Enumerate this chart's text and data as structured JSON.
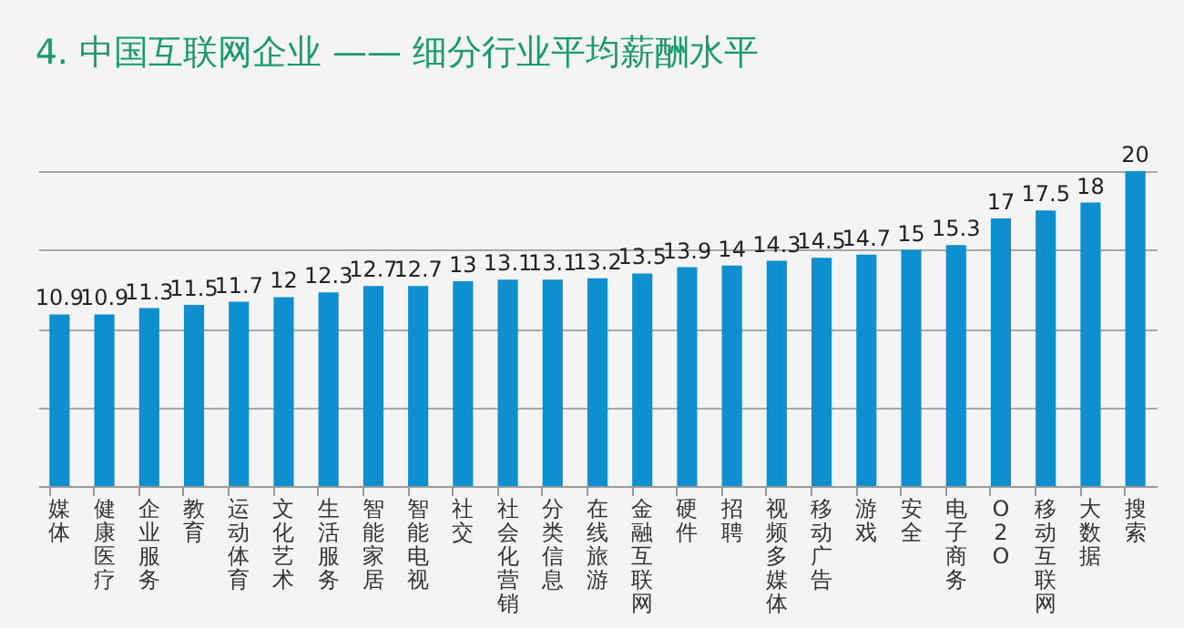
{
  "chart_data": {
    "type": "bar",
    "title": "4. 中国互联网企业 —— 细分行业平均薪酬水平",
    "categories": [
      "媒体",
      "健康医疗",
      "企业服务",
      "教育",
      "运动体育",
      "文化艺术",
      "生活服务",
      "智能家居",
      "智能电视",
      "社交",
      "社会化营销",
      "分类信息",
      "在线旅游",
      "金融互联网",
      "硬件",
      "招聘",
      "视频多媒体",
      "移动广告",
      "游戏",
      "安全",
      "电子商务",
      "O2O",
      "移动互联网",
      "大数据",
      "搜索"
    ],
    "values": [
      10.9,
      10.9,
      11.3,
      11.5,
      11.7,
      12,
      12.3,
      12.7,
      12.7,
      13,
      13.1,
      13.1,
      13.2,
      13.5,
      13.9,
      14,
      14.3,
      14.5,
      14.7,
      15,
      15.3,
      17,
      17.5,
      18,
      20
    ],
    "color": "#0e8fcf",
    "ylim": [
      0,
      20
    ],
    "yticks": [
      {
        "value": 0,
        "label": null
      },
      {
        "value": 5,
        "label": null
      },
      {
        "value": 10,
        "label": null
      },
      {
        "value": 15,
        "label": null
      },
      {
        "value": 20,
        "label": null
      }
    ],
    "grid": "y",
    "tick_labels": "x",
    "data_labels": true
  }
}
